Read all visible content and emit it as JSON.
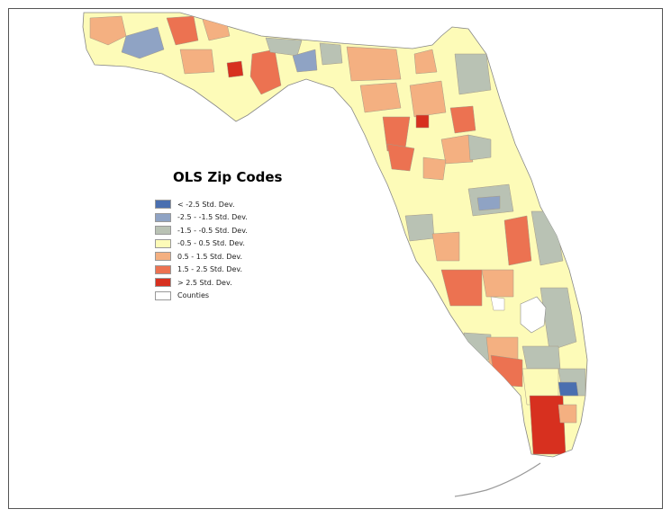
{
  "legend": {
    "title": "OLS Zip Codes",
    "items": [
      {
        "label": "< -2.5 Std. Dev.",
        "color": "#4a6fb0"
      },
      {
        "label": "-2.5 - -1.5 Std. Dev.",
        "color": "#8fa3c4"
      },
      {
        "label": "-1.5 - -0.5 Std. Dev.",
        "color": "#b9c2b4"
      },
      {
        "label": "-0.5 - 0.5 Std. Dev.",
        "color": "#fdfbb8"
      },
      {
        "label": "0.5 - 1.5 Std. Dev.",
        "color": "#f4b081"
      },
      {
        "label": "1.5 - 2.5 Std. Dev.",
        "color": "#ec7251"
      },
      {
        "label": "> 2.5 Std. Dev.",
        "color": "#d7301f"
      },
      {
        "label": "Counties",
        "color": "#ffffff"
      }
    ]
  }
}
